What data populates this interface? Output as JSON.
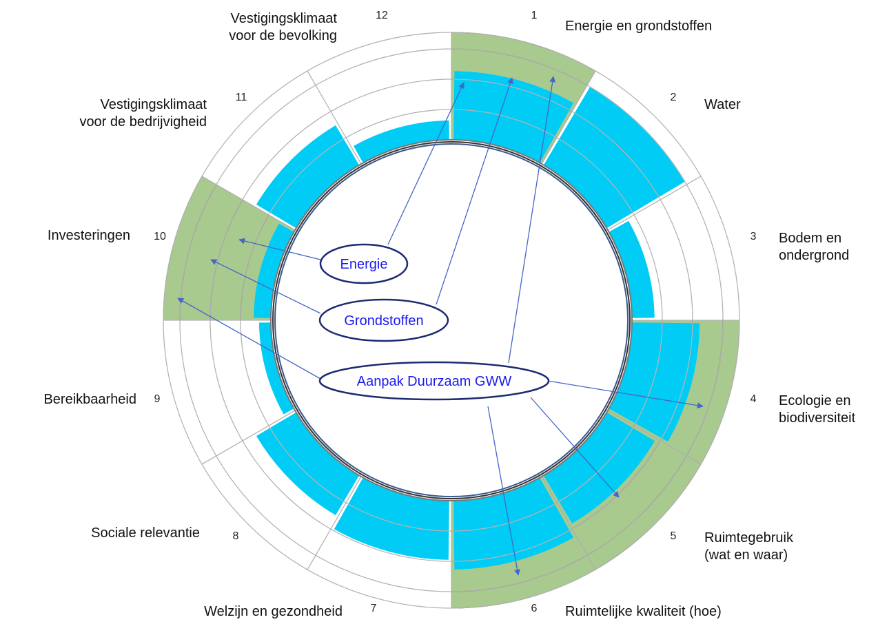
{
  "segments": [
    {
      "number": "1",
      "label_lines": [
        "Energie en grondstoffen"
      ],
      "level": 0.64,
      "highlight": true
    },
    {
      "number": "2",
      "label_lines": [
        "Water"
      ],
      "level": 0.85,
      "highlight": false
    },
    {
      "number": "3",
      "label_lines": [
        "Bodem en",
        "ondergrond"
      ],
      "level": 0.21,
      "highlight": false
    },
    {
      "number": "4",
      "label_lines": [
        "Ecologie en",
        "biodiversiteit"
      ],
      "level": 0.63,
      "highlight": true
    },
    {
      "number": "5",
      "label_lines": [
        "Ruimtegebruik",
        "(wat en waar)"
      ],
      "level": 0.52,
      "highlight": true
    },
    {
      "number": "6",
      "label_lines": [
        "Ruimtelijke kwaliteit (hoe)"
      ],
      "level": 0.64,
      "highlight": true
    },
    {
      "number": "7",
      "label_lines": [
        "Welzijn en gezondheid"
      ],
      "level": 0.55,
      "highlight": false
    },
    {
      "number": "8",
      "label_lines": [
        "Sociale relevantie"
      ],
      "level": 0.43,
      "highlight": false
    },
    {
      "number": "9",
      "label_lines": [
        "Bereikbaarheid"
      ],
      "level": 0.11,
      "highlight": false
    },
    {
      "number": "10",
      "label_lines": [
        "Investeringen"
      ],
      "level": 0.16,
      "highlight": true
    },
    {
      "number": "11",
      "label_lines": [
        "Vestigingsklimaat",
        "voor de bedrijvigheid"
      ],
      "level": 0.43,
      "highlight": false
    },
    {
      "number": "12",
      "label_lines": [
        "Vestigingsklimaat",
        "voor de bevolking"
      ],
      "level": 0.18,
      "highlight": false
    }
  ],
  "ovals": {
    "energie": "Energie",
    "grondstoffen": "Grondstoffen",
    "gww": "Aanpak Duurzaam GWW"
  },
  "colors": {
    "level_fill": "#00ccf5",
    "highlight_fill": "#a9ca8e",
    "ring_line": "#b4b4b4",
    "highlight_line": "#4a4a4a",
    "arrow": "#4466c6",
    "oval_stroke": "#1c2a70"
  }
}
